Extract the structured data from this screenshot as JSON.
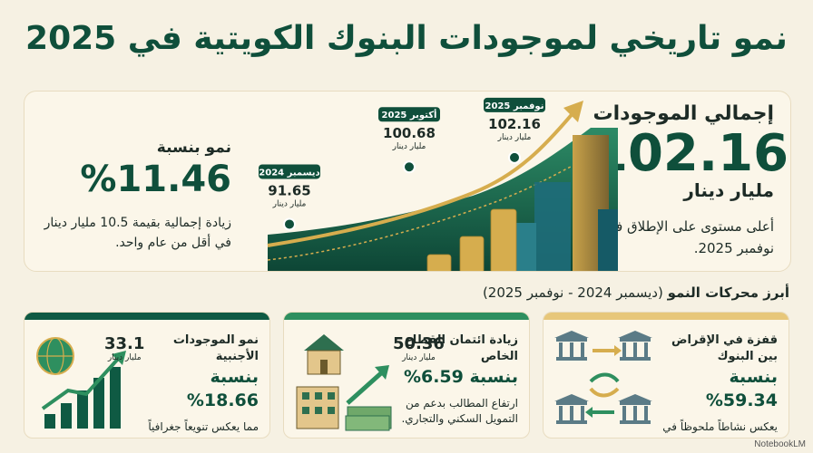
{
  "title": "نمو تاريخي لموجودات البنوك الكويتية في 2025",
  "hero": {
    "total_label": "إجمالي الموجودات",
    "total_value": "102.16",
    "total_unit": "مليار دينار",
    "total_note": "أعلى مستوى على الإطلاق في نوفمبر 2025.",
    "growth_label": "نمو بنسبة",
    "growth_value": "%11.46",
    "growth_note": "زيادة إجمالية بقيمة 10.5 مليار دينار في أقل من عام واحد."
  },
  "chart_data": {
    "type": "line",
    "x": [
      "ديسمبر 2024",
      "أكتوبر 2025",
      "نوفمبر 2025"
    ],
    "values": [
      91.65,
      100.68,
      102.16
    ],
    "unit": "مليار دينار"
  },
  "drivers": {
    "title": "أبرز محركات النمو",
    "period": "(ديسمبر 2024 - نوفمبر 2025)",
    "cards": [
      {
        "title": "قفزة في الإقراض بين البنوك",
        "pct": "بنسبة 59.34%",
        "desc": "يعكس نشاطاً ملحوظاً في إدارة السيولة داخل الجهاز المصرفي.",
        "accent": "#e7c77a"
      },
      {
        "title": "زيادة ائتمان القطاع الخاص",
        "pct": "بنسبة 6.59%",
        "desc": "ارتفاع المطالب بدعم من التمويل السكني والتجاري.",
        "stat_value": "50.36",
        "stat_unit": "مليار دينار",
        "accent": "#2e8f5f"
      },
      {
        "title": "نمو الموجودات الأجنبية",
        "pct": "بنسبة 18.66%",
        "desc": "مما يعكس تنويعاً جغرافياً للمحافظ.",
        "stat_value": "33.1",
        "stat_unit": "مليار دينار",
        "accent": "#0f5a43"
      }
    ]
  },
  "footer": "NotebookLM",
  "colors": {
    "primary": "#0f4f3b",
    "gold": "#d6ad4e",
    "background": "#f6f1e3"
  }
}
